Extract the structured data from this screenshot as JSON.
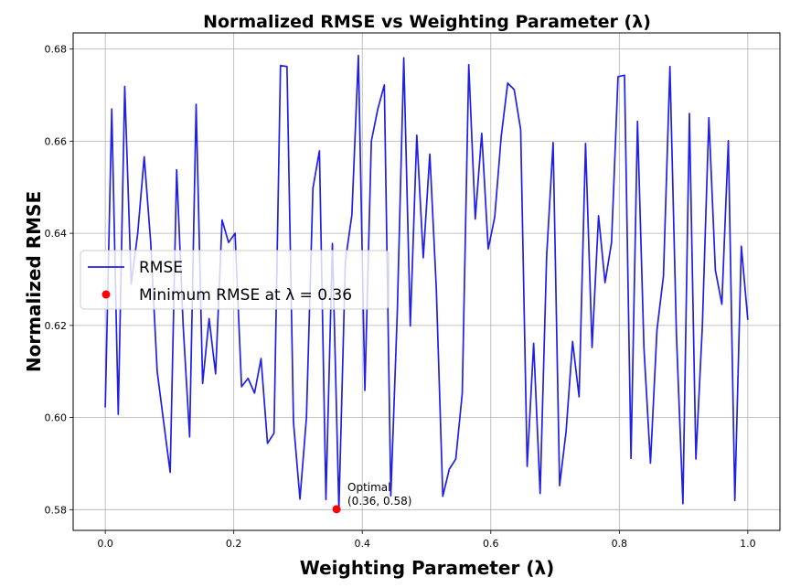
{
  "chart_data": {
    "type": "line",
    "title": "Normalized RMSE vs Weighting Parameter (λ)",
    "xlabel": "Weighting Parameter (λ)",
    "ylabel": "Normalized RMSE",
    "xlim": [
      -0.05,
      1.05
    ],
    "ylim": [
      0.5755,
      0.6835
    ],
    "xticks": [
      0.0,
      0.2,
      0.4,
      0.6,
      0.8,
      1.0
    ],
    "xtick_labels": [
      "0.0",
      "0.2",
      "0.4",
      "0.6",
      "0.8",
      "1.0"
    ],
    "yticks": [
      0.58,
      0.6,
      0.62,
      0.64,
      0.66,
      0.68
    ],
    "ytick_labels": [
      "0.58",
      "0.60",
      "0.62",
      "0.64",
      "0.66",
      "0.68"
    ],
    "grid": true,
    "legend_position": "center-left",
    "series": [
      {
        "name": "RMSE",
        "color": "#1f1fe8",
        "x": [
          0.0,
          0.0101,
          0.0202,
          0.0303,
          0.0404,
          0.0505,
          0.0606,
          0.0707,
          0.0808,
          0.0909,
          0.101,
          0.1111,
          0.1212,
          0.1313,
          0.1414,
          0.1515,
          0.1616,
          0.1717,
          0.1818,
          0.1919,
          0.202,
          0.2121,
          0.2222,
          0.2323,
          0.2424,
          0.2525,
          0.2626,
          0.2727,
          0.2828,
          0.2929,
          0.303,
          0.3131,
          0.3232,
          0.3333,
          0.3434,
          0.3535,
          0.3636,
          0.3737,
          0.3838,
          0.3939,
          0.404,
          0.4141,
          0.4242,
          0.4343,
          0.4444,
          0.4545,
          0.4646,
          0.4747,
          0.4848,
          0.4949,
          0.5051,
          0.5152,
          0.5253,
          0.5354,
          0.5455,
          0.5556,
          0.5657,
          0.5758,
          0.5859,
          0.596,
          0.6061,
          0.6162,
          0.6263,
          0.6364,
          0.6465,
          0.6566,
          0.6667,
          0.6768,
          0.6869,
          0.697,
          0.7071,
          0.7172,
          0.7273,
          0.7374,
          0.7475,
          0.7576,
          0.7677,
          0.7778,
          0.7879,
          0.798,
          0.8081,
          0.8182,
          0.8283,
          0.8384,
          0.8485,
          0.8586,
          0.8687,
          0.8788,
          0.8889,
          0.899,
          0.9091,
          0.9192,
          0.9293,
          0.9394,
          0.9495,
          0.9596,
          0.9697,
          0.9798,
          0.9899,
          1.0
        ],
        "y": [
          0.6022,
          0.667,
          0.6007,
          0.6719,
          0.629,
          0.64,
          0.6566,
          0.638,
          0.61,
          0.599,
          0.5881,
          0.6538,
          0.62,
          0.5958,
          0.668,
          0.6074,
          0.6215,
          0.6095,
          0.6429,
          0.638,
          0.64,
          0.6067,
          0.6085,
          0.6053,
          0.6128,
          0.5944,
          0.5966,
          0.6764,
          0.6762,
          0.599,
          0.5823,
          0.6,
          0.6498,
          0.6579,
          0.5822,
          0.6378,
          0.5801,
          0.634,
          0.644,
          0.6786,
          0.6059,
          0.66,
          0.667,
          0.6722,
          0.583,
          0.623,
          0.6781,
          0.6199,
          0.6613,
          0.6347,
          0.6572,
          0.628,
          0.5829,
          0.5888,
          0.591,
          0.6053,
          0.6766,
          0.6431,
          0.6617,
          0.6366,
          0.6435,
          0.661,
          0.6726,
          0.6712,
          0.6625,
          0.5894,
          0.6161,
          0.5835,
          0.635,
          0.6597,
          0.5852,
          0.597,
          0.6165,
          0.6045,
          0.6595,
          0.6152,
          0.6438,
          0.6293,
          0.638,
          0.674,
          0.6743,
          0.5911,
          0.6643,
          0.615,
          0.5901,
          0.619,
          0.6307,
          0.6762,
          0.618,
          0.5813,
          0.666,
          0.591,
          0.62,
          0.6651,
          0.632,
          0.6246,
          0.6601,
          0.582,
          0.6372,
          0.6212
        ]
      }
    ],
    "minimum_point": {
      "x": 0.36,
      "y": 0.5801,
      "color": "#ff0000"
    },
    "legend": {
      "line_label": "RMSE",
      "point_label": "Minimum RMSE at λ = 0.36"
    },
    "annotation": {
      "line1": "Optimal",
      "line2": "(0.36, 0.58)"
    }
  }
}
